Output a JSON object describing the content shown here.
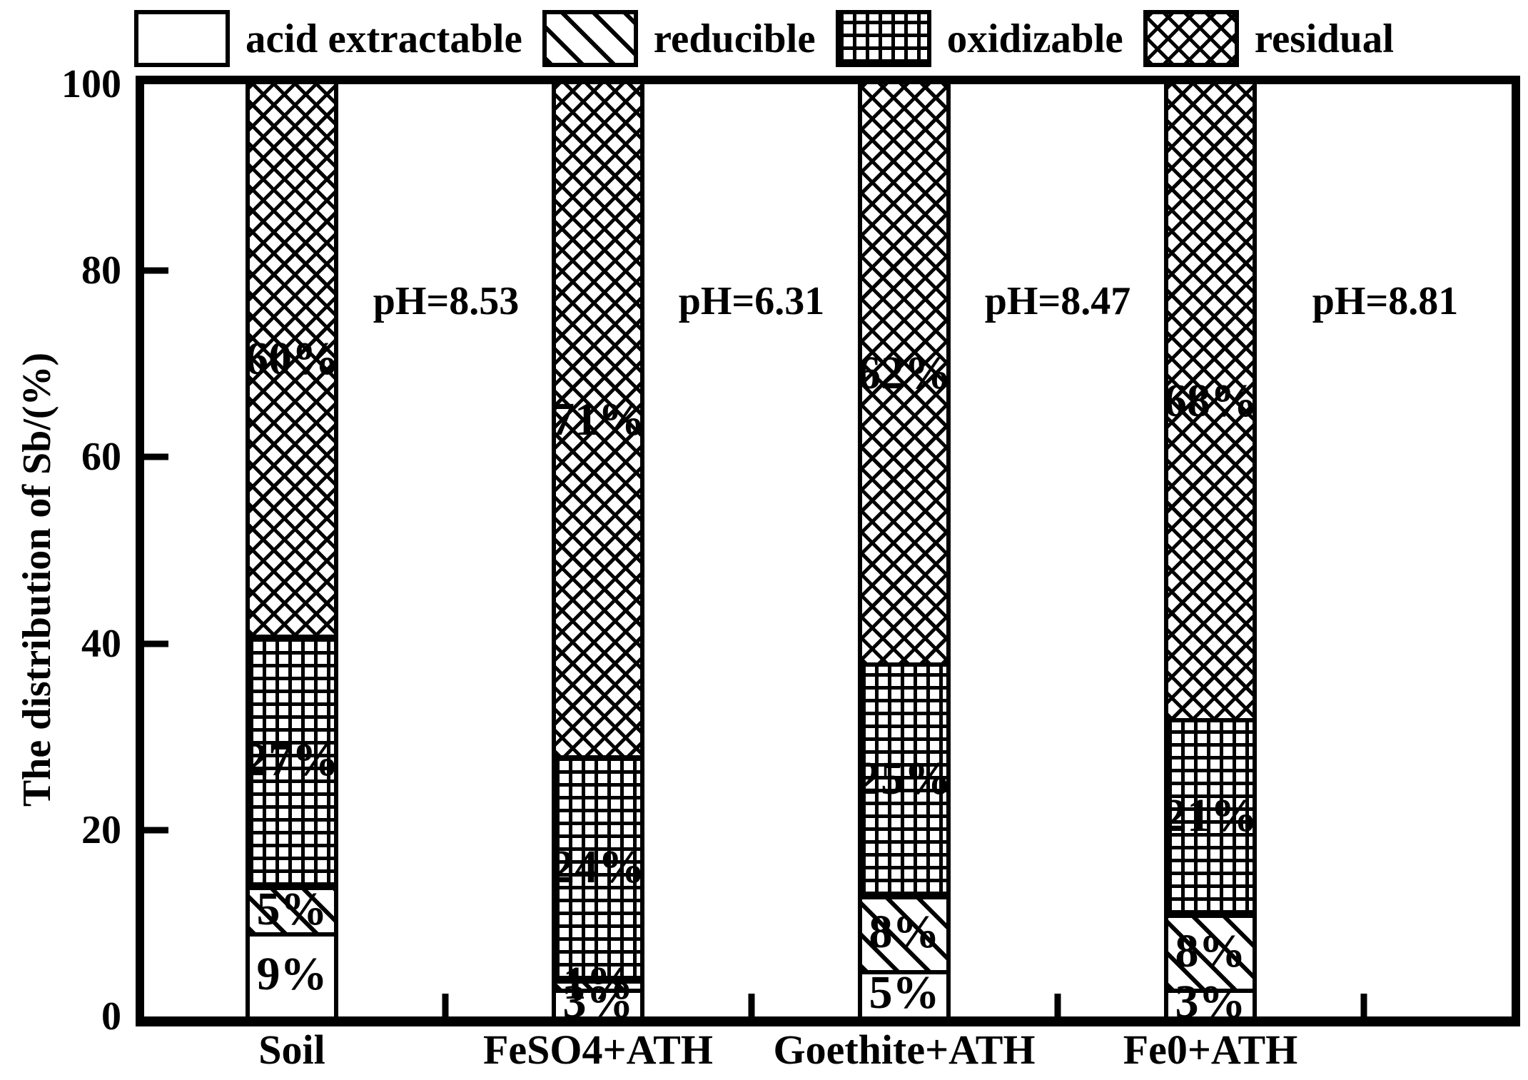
{
  "chart_data": {
    "type": "bar",
    "subtype": "stacked-percent-column",
    "title": "",
    "xlabel": "",
    "ylabel": "The distribution of Sb/(%)",
    "ylim": [
      0,
      100
    ],
    "yticks": [
      0,
      20,
      40,
      60,
      80,
      100
    ],
    "grid": false,
    "legend_position": "top",
    "categories": [
      "Soil",
      "FeSO4+ATH",
      "Goethite+ATH",
      "Fe0+ATH"
    ],
    "series": [
      {
        "name": "acid extractable",
        "pattern": "plain",
        "values": [
          9,
          3,
          5,
          3
        ]
      },
      {
        "name": "reducible",
        "pattern": "diagonal",
        "values": [
          5,
          1,
          8,
          8
        ]
      },
      {
        "name": "oxidizable",
        "pattern": "grid",
        "values": [
          27,
          24,
          25,
          21
        ]
      },
      {
        "name": "residual",
        "pattern": "crosshatch",
        "values": [
          60,
          71,
          62,
          68
        ]
      }
    ],
    "bar_annotations": [
      "pH=8.53",
      "pH=6.31",
      "pH=8.47",
      "pH=8.81"
    ],
    "colors": {
      "foreground": "#000000",
      "background": "#ffffff"
    }
  }
}
